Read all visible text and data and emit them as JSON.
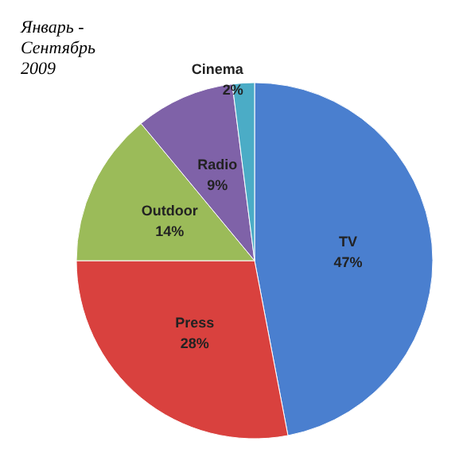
{
  "chart_data": {
    "type": "pie",
    "title": "Январь - Сентябрь 2009",
    "categories": [
      "TV",
      "Press",
      "Outdoor",
      "Radio",
      "Cinema"
    ],
    "values": [
      47,
      28,
      14,
      9,
      2
    ],
    "colors": [
      "#4a7fcf",
      "#d9413e",
      "#9bbb59",
      "#7f62a8",
      "#4bacc6"
    ],
    "value_labels": [
      "47%",
      "28%",
      "14%",
      "9%",
      "2%"
    ],
    "legend": false
  }
}
